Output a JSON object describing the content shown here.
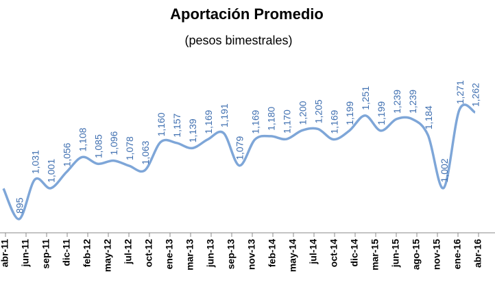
{
  "chart_data": {
    "type": "line",
    "title": "Aportación Promedio",
    "subtitle": "(pesos bimestrales)",
    "xtick_labels": [
      "abr-11",
      "jun-11",
      "sep-11",
      "dic-11",
      "feb-12",
      "may-12",
      "jul-12",
      "oct-12",
      "ene-13",
      "mar-13",
      "jun-13",
      "sep-13",
      "nov-13",
      "feb-14",
      "may-14",
      "jul-14",
      "oct-14",
      "dic-14",
      "mar-15",
      "jun-15",
      "ago-15",
      "nov-15",
      "ene-16",
      "abr-16"
    ],
    "values": [
      1000,
      895,
      1031,
      1001,
      1056,
      1108,
      1085,
      1096,
      1078,
      1063,
      1160,
      1157,
      1139,
      1169,
      1191,
      1079,
      1169,
      1180,
      1170,
      1200,
      1205,
      1169,
      1199,
      1251,
      1199,
      1239,
      1239,
      1184,
      1002,
      1271,
      1262
    ],
    "value_labels": [
      null,
      "895",
      "1,031",
      "1,001",
      "1,056",
      "1,108",
      "1,085",
      "1,096",
      "1,078",
      "1,063",
      "1,160",
      "1,157",
      "1,139",
      "1,169",
      "1,191",
      "1,079",
      "1,169",
      "1,180",
      "1,170",
      "1,200",
      "1,205",
      "1,169",
      "1,199",
      "1,251",
      "1,199",
      "1,239",
      "1,239",
      "1,184",
      "1,002",
      "1,271",
      "1,262"
    ],
    "color": "#7ea6d8",
    "label_color": "#3f6fb0",
    "ylim": [
      850,
      1300
    ]
  }
}
